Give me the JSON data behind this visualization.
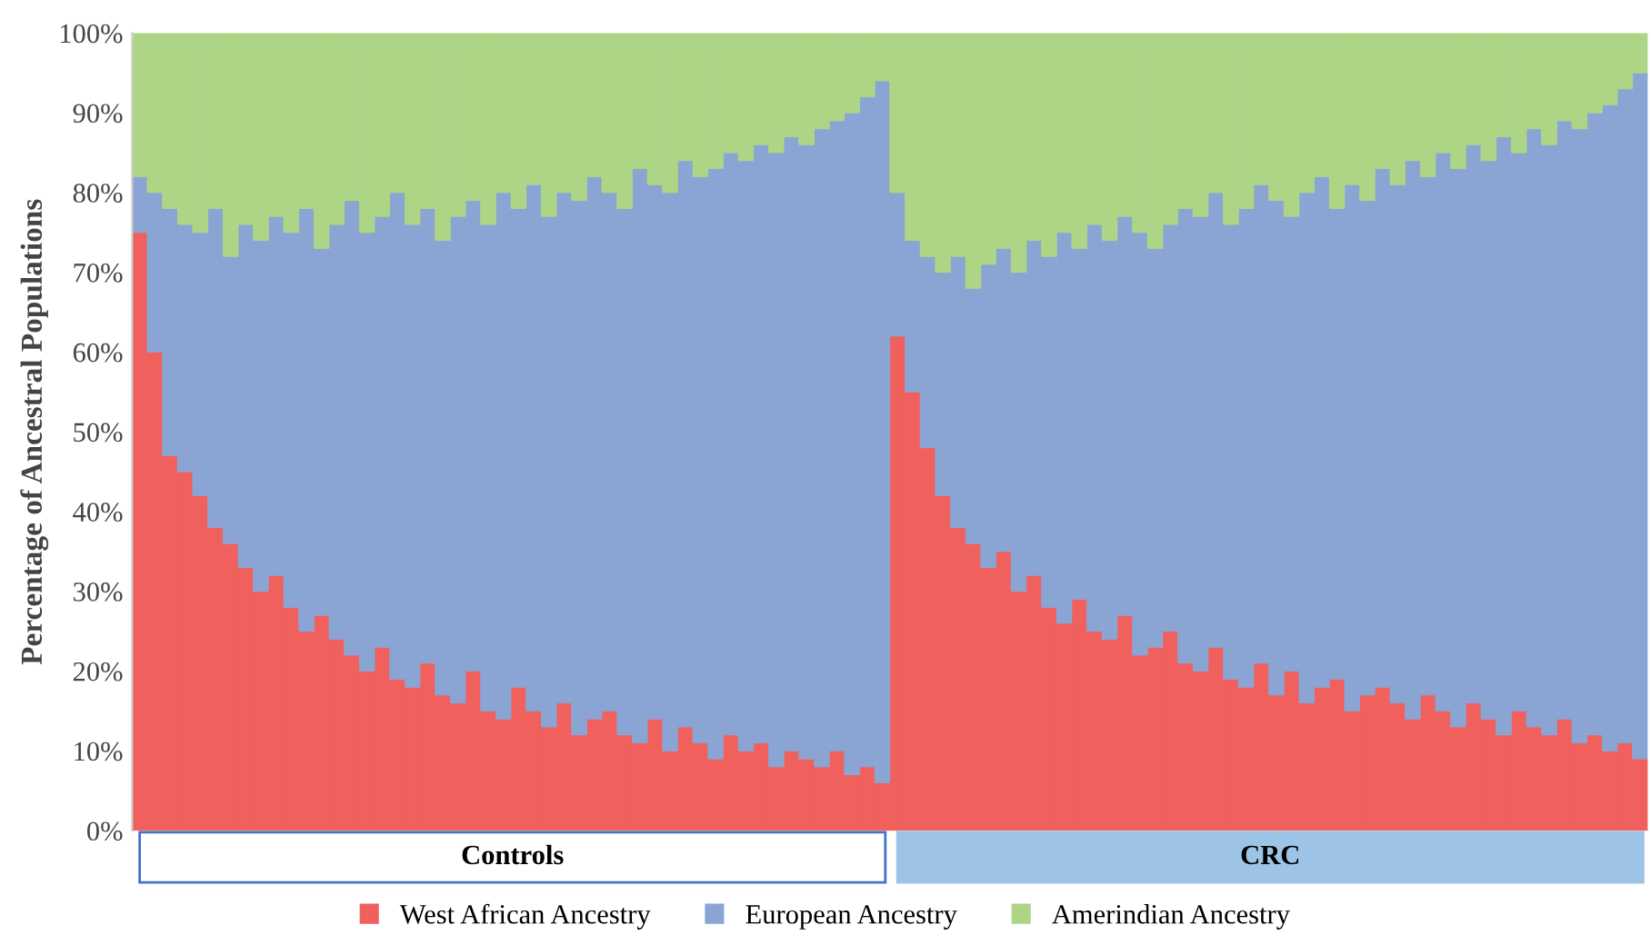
{
  "chart_data": {
    "type": "bar",
    "stacked": true,
    "ylabel": "Percentage of Ancestral Populations",
    "categories": [
      null,
      null,
      null,
      null,
      null,
      null,
      null,
      null,
      null,
      null,
      null,
      null,
      null,
      null,
      null,
      null,
      null,
      null,
      null,
      null,
      null,
      null,
      null,
      null,
      null,
      null,
      null,
      null,
      null,
      null,
      null,
      null,
      null,
      null,
      null,
      null,
      null,
      null,
      null,
      null,
      null,
      null,
      null,
      null,
      null,
      null,
      null,
      null,
      null,
      null,
      null,
      null,
      null,
      null,
      null,
      null,
      null,
      null,
      null,
      null,
      null,
      null,
      null,
      null,
      null,
      null,
      null,
      null,
      null,
      null,
      null,
      null,
      null,
      null,
      null,
      null,
      null,
      null,
      null,
      null,
      null,
      null,
      null,
      null,
      null,
      null,
      null,
      null,
      null,
      null,
      null,
      null,
      null,
      null,
      null,
      null,
      null,
      null,
      null,
      null
    ],
    "series": [
      {
        "name": "West African Ancestry",
        "color": "#f0605d",
        "values": [
          75,
          60,
          47,
          45,
          42,
          38,
          36,
          33,
          30,
          32,
          28,
          25,
          27,
          24,
          22,
          20,
          23,
          19,
          18,
          21,
          17,
          16,
          20,
          15,
          14,
          18,
          15,
          13,
          16,
          12,
          14,
          15,
          12,
          11,
          14,
          10,
          13,
          11,
          9,
          12,
          10,
          11,
          8,
          10,
          9,
          8,
          10,
          7,
          8,
          6,
          62,
          55,
          48,
          42,
          38,
          36,
          33,
          35,
          30,
          32,
          28,
          26,
          29,
          25,
          24,
          27,
          22,
          23,
          25,
          21,
          20,
          23,
          19,
          18,
          21,
          17,
          20,
          16,
          18,
          19,
          15,
          17,
          18,
          16,
          14,
          17,
          15,
          13,
          16,
          14,
          12,
          15,
          13,
          12,
          14,
          11,
          12,
          10,
          11,
          9
        ]
      },
      {
        "name": "European Ancestry",
        "color": "#8aa4d4",
        "values": [
          7,
          20,
          31,
          31,
          33,
          40,
          36,
          43,
          44,
          45,
          47,
          53,
          46,
          52,
          57,
          55,
          54,
          61,
          58,
          57,
          57,
          61,
          59,
          61,
          66,
          60,
          66,
          64,
          64,
          67,
          68,
          65,
          66,
          72,
          67,
          70,
          71,
          71,
          74,
          73,
          74,
          75,
          77,
          77,
          77,
          80,
          79,
          83,
          84,
          88,
          18,
          19,
          24,
          28,
          34,
          32,
          38,
          38,
          40,
          42,
          44,
          49,
          44,
          51,
          50,
          50,
          53,
          50,
          51,
          57,
          57,
          57,
          57,
          60,
          60,
          62,
          57,
          64,
          64,
          59,
          66,
          62,
          65,
          65,
          70,
          65,
          70,
          70,
          70,
          70,
          75,
          70,
          75,
          74,
          75,
          77,
          78,
          81,
          82,
          86
        ]
      },
      {
        "name": "Amerindian Ancestry",
        "color": "#add585",
        "values": [
          18,
          20,
          22,
          24,
          25,
          22,
          28,
          24,
          26,
          23,
          25,
          22,
          27,
          24,
          21,
          25,
          23,
          20,
          24,
          22,
          26,
          23,
          21,
          24,
          20,
          22,
          19,
          23,
          20,
          21,
          18,
          20,
          22,
          17,
          19,
          20,
          16,
          18,
          17,
          15,
          16,
          14,
          15,
          13,
          14,
          12,
          11,
          10,
          8,
          6,
          20,
          26,
          28,
          30,
          28,
          32,
          29,
          27,
          30,
          26,
          28,
          25,
          27,
          24,
          26,
          23,
          25,
          27,
          24,
          22,
          23,
          20,
          24,
          22,
          19,
          21,
          23,
          20,
          18,
          22,
          19,
          21,
          17,
          19,
          16,
          18,
          15,
          17,
          14,
          16,
          13,
          15,
          12,
          14,
          11,
          12,
          10,
          9,
          7,
          5
        ]
      }
    ],
    "ylim": [
      0,
      100
    ],
    "yticks": [
      {
        "value": 0,
        "label": "0%"
      },
      {
        "value": 10,
        "label": "10%"
      },
      {
        "value": 20,
        "label": "20%"
      },
      {
        "value": 30,
        "label": "30%"
      },
      {
        "value": 40,
        "label": "40%"
      },
      {
        "value": 50,
        "label": "50%"
      },
      {
        "value": 60,
        "label": "60%"
      },
      {
        "value": 70,
        "label": "70%"
      },
      {
        "value": 80,
        "label": "80%"
      },
      {
        "value": 90,
        "label": "90%"
      },
      {
        "value": 100,
        "label": "100%"
      }
    ],
    "annotations": [
      "Controls",
      "CRC"
    ],
    "legend": "bottom",
    "grid": false
  }
}
